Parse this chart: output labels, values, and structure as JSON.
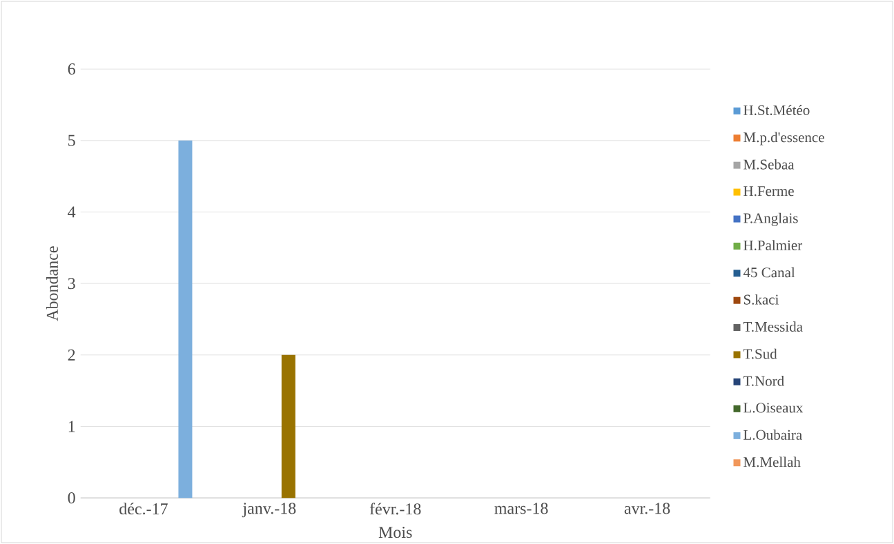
{
  "chart_data": {
    "type": "bar",
    "xlabel": "Mois",
    "ylabel": "Abondance",
    "categories": [
      "déc.-17",
      "janv.-18",
      "févr.-18",
      "mars-18",
      "avr.-18"
    ],
    "series": [
      {
        "name": "H.St.Météo",
        "color": "#5b9bd5",
        "values": [
          0,
          0,
          0,
          0,
          0
        ]
      },
      {
        "name": "M.p.d'essence",
        "color": "#ed7d31",
        "values": [
          0,
          0,
          0,
          0,
          0
        ]
      },
      {
        "name": "M.Sebaa",
        "color": "#a5a5a5",
        "values": [
          0,
          0,
          0,
          0,
          0
        ]
      },
      {
        "name": "H.Ferme",
        "color": "#ffc000",
        "values": [
          0,
          0,
          0,
          0,
          0
        ]
      },
      {
        "name": "P.Anglais",
        "color": "#4472c4",
        "values": [
          0,
          0,
          0,
          0,
          0
        ]
      },
      {
        "name": "H.Palmier",
        "color": "#70ad47",
        "values": [
          0,
          0,
          0,
          0,
          0
        ]
      },
      {
        "name": "45 Canal",
        "color": "#255e91",
        "values": [
          0,
          0,
          0,
          0,
          0
        ]
      },
      {
        "name": "S.kaci",
        "color": "#9e480e",
        "values": [
          0,
          0,
          0,
          0,
          0
        ]
      },
      {
        "name": "T.Messida",
        "color": "#636363",
        "values": [
          0,
          0,
          0,
          0,
          0
        ]
      },
      {
        "name": "T.Sud",
        "color": "#997300",
        "values": [
          0,
          2,
          0,
          0,
          0
        ]
      },
      {
        "name": "T.Nord",
        "color": "#264478",
        "values": [
          0,
          0,
          0,
          0,
          0
        ]
      },
      {
        "name": "L.Oiseaux",
        "color": "#43682b",
        "values": [
          0,
          0,
          0,
          0,
          0
        ]
      },
      {
        "name": "L.Oubaira",
        "color": "#7cafdd",
        "values": [
          5,
          0,
          0,
          0,
          0
        ]
      },
      {
        "name": "M.Mellah",
        "color": "#f1975a",
        "values": [
          0,
          0,
          0,
          0,
          0
        ]
      }
    ],
    "ylim": [
      0,
      6
    ],
    "yticks": [
      0,
      1,
      2,
      3,
      4,
      5,
      6
    ],
    "grid": "y",
    "legend": "right"
  }
}
